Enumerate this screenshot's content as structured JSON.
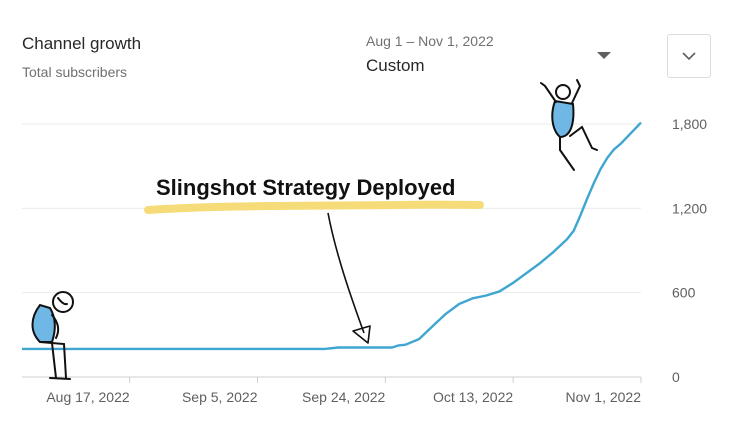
{
  "header": {
    "title": "Channel growth",
    "subtitle": "Total subscribers"
  },
  "date_range": {
    "label": "Aug 1 – Nov 1, 2022",
    "value": "Custom"
  },
  "icons": {
    "dropdown": "caret-down-icon",
    "expand": "chevron-down-icon"
  },
  "colors": {
    "line": "#3ea6d1",
    "highlight": "#f6dc78",
    "figure_fill": "#6fb8e6"
  },
  "chart_data": {
    "type": "line",
    "title": "Channel growth",
    "subtitle": "Total subscribers",
    "x_tick_labels": [
      "Aug 17, 2022",
      "Sep 5, 2022",
      "Sep 24, 2022",
      "Oct 13, 2022",
      "Nov 1, 2022"
    ],
    "y_tick_labels": [
      "0",
      "600",
      "1,200",
      "1,800"
    ],
    "ylim": [
      0,
      1800
    ],
    "x_start": "2022-08-01",
    "x_end": "2022-11-01",
    "grid": "horizontal",
    "series": [
      {
        "points": [
          [
            "2022-08-01",
            200
          ],
          [
            "2022-08-10",
            200
          ],
          [
            "2022-08-20",
            200
          ],
          [
            "2022-08-30",
            200
          ],
          [
            "2022-09-08",
            200
          ],
          [
            "2022-09-15",
            200
          ],
          [
            "2022-09-17",
            210
          ],
          [
            "2022-09-22",
            210
          ],
          [
            "2022-09-25",
            210
          ],
          [
            "2022-09-26",
            225
          ],
          [
            "2022-09-27",
            230
          ],
          [
            "2022-09-29",
            270
          ],
          [
            "2022-10-01",
            360
          ],
          [
            "2022-10-03",
            450
          ],
          [
            "2022-10-05",
            520
          ],
          [
            "2022-10-07",
            560
          ],
          [
            "2022-10-09",
            580
          ],
          [
            "2022-10-11",
            610
          ],
          [
            "2022-10-13",
            670
          ],
          [
            "2022-10-15",
            740
          ],
          [
            "2022-10-17",
            810
          ],
          [
            "2022-10-19",
            890
          ],
          [
            "2022-10-21",
            980
          ],
          [
            "2022-10-22",
            1040
          ],
          [
            "2022-10-23",
            1150
          ],
          [
            "2022-10-24",
            1270
          ],
          [
            "2022-10-25",
            1380
          ],
          [
            "2022-10-26",
            1480
          ],
          [
            "2022-10-27",
            1560
          ],
          [
            "2022-10-28",
            1620
          ],
          [
            "2022-10-29",
            1660
          ],
          [
            "2022-10-30",
            1710
          ],
          [
            "2022-10-31",
            1760
          ],
          [
            "2022-11-01",
            1810
          ]
        ]
      }
    ],
    "annotations": [
      {
        "text": "Slingshot Strategy Deployed",
        "points_to": "2022-09-25"
      }
    ]
  }
}
